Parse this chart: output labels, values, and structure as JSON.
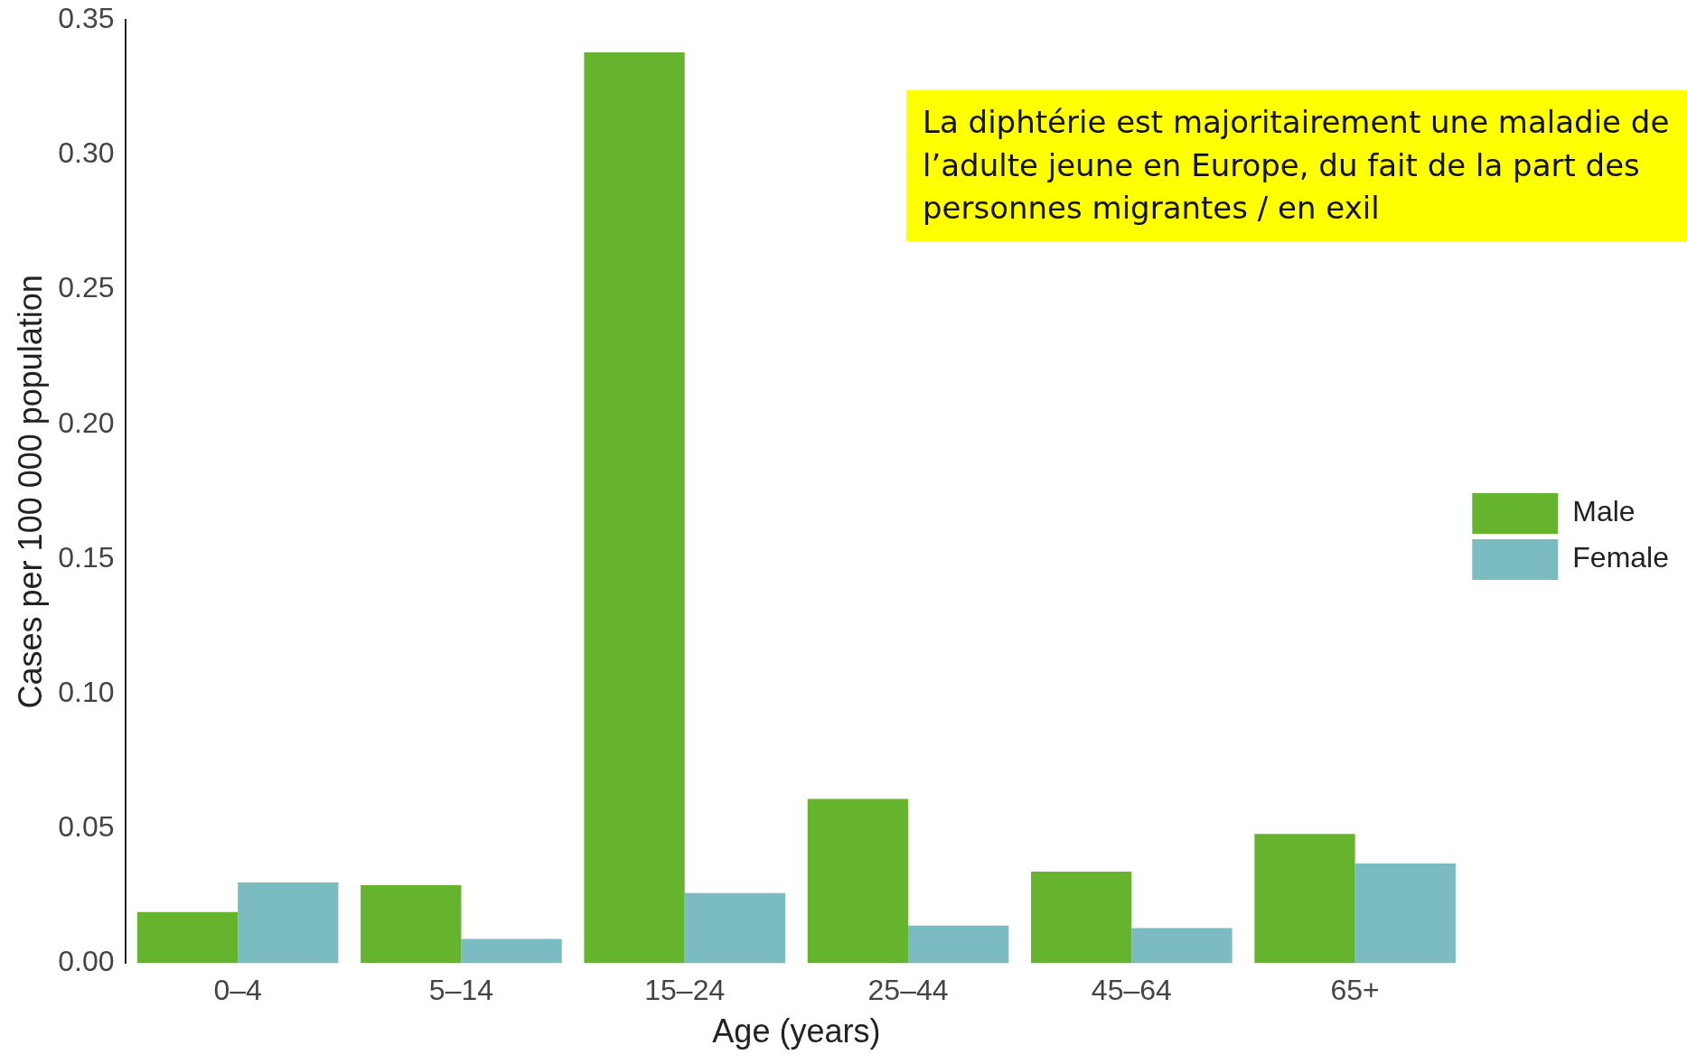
{
  "chart_data": {
    "type": "bar",
    "xlabel": "Age (years)",
    "ylabel": "Cases per 100 000 population",
    "categories": [
      "0–4",
      "5–14",
      "15–24",
      "25–44",
      "45–64",
      "65+"
    ],
    "series": [
      {
        "name": "Male",
        "color": "#66b32e",
        "values": [
          0.019,
          0.029,
          0.338,
          0.061,
          0.034,
          0.048
        ]
      },
      {
        "name": "Female",
        "color": "#7bbcc2",
        "values": [
          0.03,
          0.009,
          0.026,
          0.014,
          0.013,
          0.037
        ]
      }
    ],
    "ylim": [
      0,
      0.35
    ],
    "yticks": [
      {
        "value": 0,
        "label": "0.00"
      },
      {
        "value": 0.05,
        "label": "0.05"
      },
      {
        "value": 0.1,
        "label": "0.10"
      },
      {
        "value": 0.15,
        "label": "0.15"
      },
      {
        "value": 0.2,
        "label": "0.20"
      },
      {
        "value": 0.25,
        "label": "0.25"
      },
      {
        "value": 0.3,
        "label": "0.30"
      },
      {
        "value": 0.35,
        "label": "0.35"
      }
    ],
    "grid": false,
    "legend": "right",
    "annotations": [
      "La diphtérie est majoritairement une maladie de l’adulte jeune en Europe, du fait de la part des personnes migrantes / en exil"
    ]
  }
}
